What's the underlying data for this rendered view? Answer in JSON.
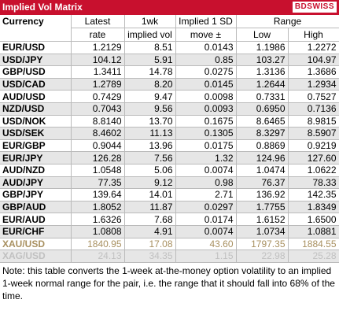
{
  "header": {
    "title": "Implied Vol Matrix",
    "logo": "BDSWISS"
  },
  "table": {
    "columns": [
      [
        "Currency"
      ],
      [
        "Latest",
        "rate"
      ],
      [
        "1wk",
        "implied vol"
      ],
      [
        "Implied 1 SD",
        "move ±"
      ]
    ],
    "range_title": "Range",
    "range_columns": [
      "Low",
      "High"
    ],
    "rows": [
      [
        "EUR/USD",
        "1.2129",
        "8.51",
        "0.0143",
        "1.1986",
        "1.2272"
      ],
      [
        "USD/JPY",
        "104.12",
        "5.91",
        "0.85",
        "103.27",
        "104.97"
      ],
      [
        "GBP/USD",
        "1.3411",
        "14.78",
        "0.0275",
        "1.3136",
        "1.3686"
      ],
      [
        "USD/CAD",
        "1.2789",
        "8.20",
        "0.0145",
        "1.2644",
        "1.2934"
      ],
      [
        "AUD/USD",
        "0.7429",
        "9.47",
        "0.0098",
        "0.7331",
        "0.7527"
      ],
      [
        "NZD/USD",
        "0.7043",
        "9.56",
        "0.0093",
        "0.6950",
        "0.7136"
      ],
      [
        "USD/NOK",
        "8.8140",
        "13.70",
        "0.1675",
        "8.6465",
        "8.9815"
      ],
      [
        "USD/SEK",
        "8.4602",
        "11.13",
        "0.1305",
        "8.3297",
        "8.5907"
      ],
      [
        "EUR/GBP",
        "0.9044",
        "13.96",
        "0.0175",
        "0.8869",
        "0.9219"
      ],
      [
        "EUR/JPY",
        "126.28",
        "7.56",
        "1.32",
        "124.96",
        "127.60"
      ],
      [
        "AUD/NZD",
        "1.0548",
        "5.06",
        "0.0074",
        "1.0474",
        "1.0622"
      ],
      [
        "AUD/JPY",
        "77.35",
        "9.12",
        "0.98",
        "76.37",
        "78.33"
      ],
      [
        "GBP/JPY",
        "139.64",
        "14.01",
        "2.71",
        "136.92",
        "142.35"
      ],
      [
        "GBP/AUD",
        "1.8052",
        "11.87",
        "0.0297",
        "1.7755",
        "1.8349"
      ],
      [
        "EUR/AUD",
        "1.6326",
        "7.68",
        "0.0174",
        "1.6152",
        "1.6500"
      ],
      [
        "EUR/CHF",
        "1.0808",
        "4.91",
        "0.0074",
        "1.0734",
        "1.0881"
      ],
      [
        "XAU/USD",
        "1840.95",
        "17.08",
        "43.60",
        "1797.35",
        "1884.55"
      ],
      [
        "XAG/USD",
        "24.13",
        "34.35",
        "1.15",
        "22.98",
        "25.28"
      ]
    ]
  },
  "note": "Note: this table converts the 1-week at-the-money option volatility to an implied 1-week normal range for the pair, i.e. the range that it should fall into 68% of the time."
}
